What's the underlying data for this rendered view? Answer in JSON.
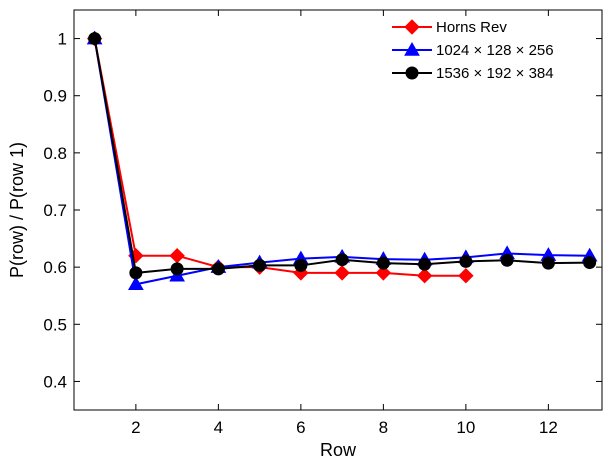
{
  "chart_data": {
    "type": "line",
    "xlabel": "Row",
    "ylabel": "P(row) / P(row 1)",
    "xlim": [
      0.5,
      13.3
    ],
    "ylim": [
      0.35,
      1.05
    ],
    "xticks": [
      2,
      4,
      6,
      8,
      10,
      12
    ],
    "xtick_labels": [
      "2",
      "4",
      "6",
      "8",
      "10",
      "12"
    ],
    "yticks": [
      0.4,
      0.5,
      0.6,
      0.7,
      0.8,
      0.9,
      1.0
    ],
    "ytick_labels": [
      "0.4",
      "0.5",
      "0.6",
      "0.7",
      "0.8",
      "0.9",
      "1"
    ],
    "grid": false,
    "legend_position": "top-right",
    "series": [
      {
        "name": "Horns Rev",
        "color": "#ff0000",
        "marker": "diamond",
        "x": [
          1,
          2,
          3,
          4,
          5,
          6,
          7,
          8,
          9,
          10
        ],
        "y": [
          1.0,
          0.62,
          0.62,
          0.6,
          0.6,
          0.59,
          0.59,
          0.59,
          0.585,
          0.585
        ]
      },
      {
        "name": "1024 × 128 × 256",
        "color": "#0000ff",
        "marker": "triangle",
        "x": [
          1,
          2,
          3,
          4,
          5,
          6,
          7,
          8,
          9,
          10,
          11,
          12,
          13
        ],
        "y": [
          1.0,
          0.57,
          0.585,
          0.6,
          0.608,
          0.615,
          0.618,
          0.614,
          0.613,
          0.617,
          0.624,
          0.621,
          0.62
        ]
      },
      {
        "name": "1536 × 192 × 384",
        "color": "#000000",
        "marker": "circle",
        "x": [
          1,
          2,
          3,
          4,
          5,
          6,
          7,
          8,
          9,
          10,
          11,
          12,
          13
        ],
        "y": [
          1.0,
          0.59,
          0.597,
          0.597,
          0.603,
          0.603,
          0.613,
          0.607,
          0.605,
          0.61,
          0.612,
          0.607,
          0.608
        ]
      }
    ]
  }
}
